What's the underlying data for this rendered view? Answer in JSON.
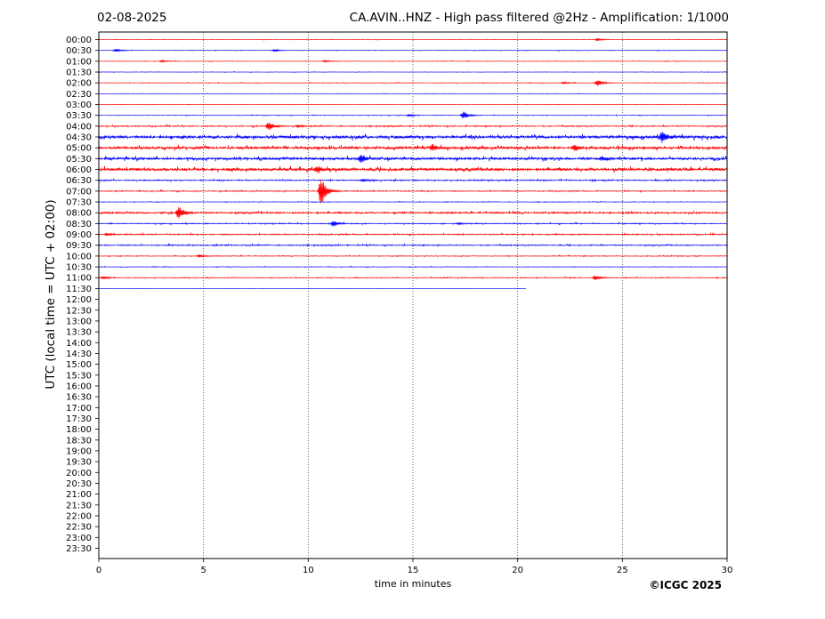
{
  "header": {
    "date": "02-08-2025",
    "title": "CA.AVIN..HNZ - High pass filtered @2Hz - Amplification: 1/1000"
  },
  "footer": {
    "copyright": "©ICGC 2025"
  },
  "chart_data": {
    "type": "line",
    "title": "CA.AVIN..HNZ - High pass filtered @2Hz - Amplification: 1/1000",
    "xlabel": "time in minutes",
    "ylabel": "UTC (local time = UTC + 02:00)",
    "xlim": [
      0,
      30
    ],
    "xticks": [
      "0",
      "5",
      "10",
      "15",
      "20",
      "25",
      "30"
    ],
    "xgrid": [
      5,
      10,
      15,
      20,
      25
    ],
    "grid": "vertical dotted",
    "colors": {
      "even_rows": "#ff0000",
      "odd_rows": "#0000ff"
    },
    "rows": [
      "00:00",
      "00:30",
      "01:00",
      "01:30",
      "02:00",
      "02:30",
      "03:00",
      "03:30",
      "04:00",
      "04:30",
      "05:00",
      "05:30",
      "06:00",
      "06:30",
      "07:00",
      "07:30",
      "08:00",
      "08:30",
      "09:00",
      "09:30",
      "10:00",
      "10:30",
      "11:00",
      "11:30",
      "12:00",
      "12:30",
      "13:00",
      "13:30",
      "14:00",
      "14:30",
      "15:00",
      "15:30",
      "16:00",
      "16:30",
      "17:00",
      "17:30",
      "18:00",
      "18:30",
      "19:00",
      "19:30",
      "20:00",
      "20:30",
      "21:00",
      "21:30",
      "22:00",
      "22:30",
      "23:00",
      "23:30"
    ],
    "traces": [
      {
        "row": "00:00",
        "end": 30,
        "noise": 0.25,
        "events": [
          [
            23.8,
            1.5
          ]
        ]
      },
      {
        "row": "00:30",
        "end": 30,
        "noise": 0.25,
        "events": [
          [
            0.8,
            2
          ],
          [
            8.4,
            1.5
          ]
        ]
      },
      {
        "row": "01:00",
        "end": 30,
        "noise": 0.25,
        "events": [
          [
            3.0,
            1.2
          ],
          [
            10.8,
            1.2
          ]
        ]
      },
      {
        "row": "01:30",
        "end": 30,
        "noise": 0.2,
        "events": []
      },
      {
        "row": "02:00",
        "end": 30,
        "noise": 0.3,
        "events": [
          [
            23.8,
            4
          ],
          [
            22.2,
            1.5
          ]
        ]
      },
      {
        "row": "02:30",
        "end": 30,
        "noise": 0.2,
        "events": []
      },
      {
        "row": "03:00",
        "end": 30,
        "noise": 0.2,
        "events": []
      },
      {
        "row": "03:30",
        "end": 30,
        "noise": 0.3,
        "events": [
          [
            17.4,
            5
          ],
          [
            14.8,
            1.5
          ]
        ]
      },
      {
        "row": "04:00",
        "end": 30,
        "noise": 0.6,
        "events": [
          [
            8.1,
            5
          ],
          [
            9.5,
            1.5
          ]
        ]
      },
      {
        "row": "04:30",
        "end": 30,
        "noise": 1.6,
        "events": [
          [
            26.9,
            6
          ]
        ]
      },
      {
        "row": "05:00",
        "end": 30,
        "noise": 1.4,
        "events": [
          [
            15.9,
            4
          ],
          [
            22.7,
            3
          ]
        ]
      },
      {
        "row": "05:30",
        "end": 30,
        "noise": 1.3,
        "events": [
          [
            12.5,
            5
          ],
          [
            24.0,
            2.5
          ]
        ]
      },
      {
        "row": "06:00",
        "end": 30,
        "noise": 1.6,
        "events": [
          [
            10.4,
            3
          ]
        ]
      },
      {
        "row": "06:30",
        "end": 30,
        "noise": 0.6,
        "events": [
          [
            12.6,
            1.5
          ]
        ]
      },
      {
        "row": "07:00",
        "end": 30,
        "noise": 0.5,
        "events": [
          [
            10.6,
            20
          ]
        ]
      },
      {
        "row": "07:30",
        "end": 30,
        "noise": 0.3,
        "events": []
      },
      {
        "row": "08:00",
        "end": 30,
        "noise": 0.9,
        "events": [
          [
            3.8,
            8
          ]
        ]
      },
      {
        "row": "08:30",
        "end": 30,
        "noise": 0.5,
        "events": [
          [
            11.2,
            3.5
          ],
          [
            17.2,
            1.2
          ]
        ]
      },
      {
        "row": "09:00",
        "end": 30,
        "noise": 0.6,
        "events": [
          [
            0.4,
            2
          ]
        ]
      },
      {
        "row": "09:30",
        "end": 30,
        "noise": 0.6,
        "events": []
      },
      {
        "row": "10:00",
        "end": 30,
        "noise": 0.4,
        "events": [
          [
            4.8,
            2
          ]
        ]
      },
      {
        "row": "10:30",
        "end": 30,
        "noise": 0.3,
        "events": []
      },
      {
        "row": "11:00",
        "end": 30,
        "noise": 0.4,
        "events": [
          [
            23.7,
            3
          ],
          [
            0.2,
            2
          ]
        ]
      },
      {
        "row": "11:30",
        "end": 20.4,
        "noise": 0.15,
        "events": []
      }
    ]
  }
}
